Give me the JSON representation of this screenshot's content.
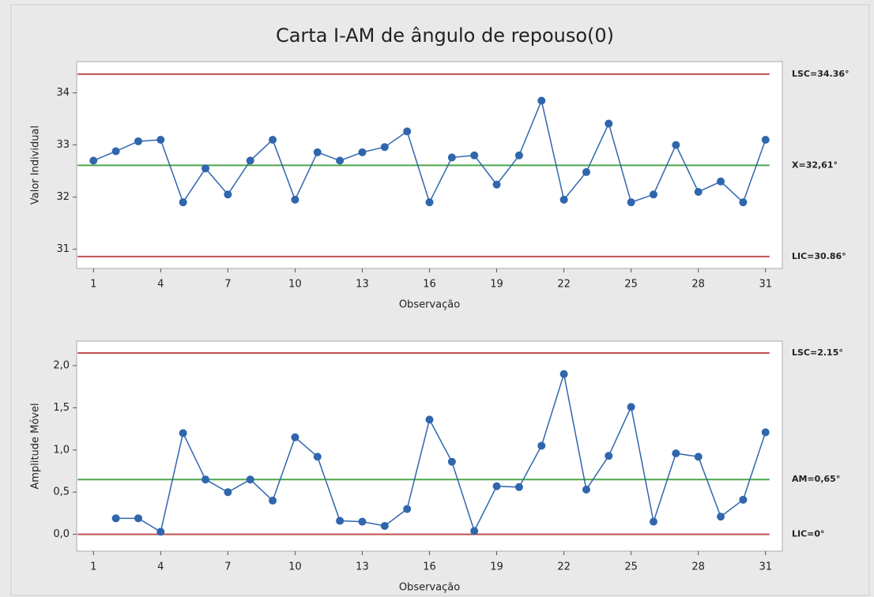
{
  "chart_data": [
    {
      "type": "line",
      "title": "Carta I-AM de ângulo de repouso(0)",
      "ylabel": "Valor Individual",
      "xlabel": "Observação",
      "x": [
        1,
        2,
        3,
        4,
        5,
        6,
        7,
        8,
        9,
        10,
        11,
        12,
        13,
        14,
        15,
        16,
        17,
        18,
        19,
        20,
        21,
        22,
        23,
        24,
        25,
        26,
        27,
        28,
        29,
        30,
        31
      ],
      "values": [
        32.7,
        32.88,
        33.07,
        33.1,
        31.9,
        32.55,
        32.05,
        32.7,
        33.1,
        31.95,
        32.86,
        32.7,
        32.86,
        32.96,
        33.26,
        31.9,
        32.76,
        32.8,
        32.24,
        32.8,
        33.85,
        31.95,
        32.48,
        33.41,
        31.9,
        32.05,
        33.0,
        32.1,
        32.3,
        31.9,
        33.1
      ],
      "color": "#2f66ad",
      "xlim": [
        0.25,
        31.75
      ],
      "xticks": [
        1,
        4,
        7,
        10,
        13,
        16,
        19,
        22,
        25,
        28,
        31
      ],
      "ylim": [
        30.63,
        34.6
      ],
      "yticks": [
        31,
        32,
        33,
        34
      ],
      "limits": [
        {
          "value": 34.36,
          "label": "LSC=34.36°",
          "color": "#c0504d"
        },
        {
          "value": 32.61,
          "label": "X=32,61°",
          "color": "#4ca64c"
        },
        {
          "value": 30.86,
          "label": "LIC=30.86°",
          "color": "#c0504d"
        }
      ]
    },
    {
      "type": "line",
      "ylabel": "Amplitude Móvel",
      "xlabel": "Observação",
      "x": [
        1,
        2,
        3,
        4,
        5,
        6,
        7,
        8,
        9,
        10,
        11,
        12,
        13,
        14,
        15,
        16,
        17,
        18,
        19,
        20,
        21,
        22,
        23,
        24,
        25,
        26,
        27,
        28,
        29,
        30,
        31
      ],
      "values": [
        null,
        0.19,
        0.19,
        0.03,
        1.2,
        0.65,
        0.5,
        0.65,
        0.4,
        1.15,
        0.92,
        0.16,
        0.15,
        0.1,
        0.3,
        1.36,
        0.86,
        0.04,
        0.57,
        0.56,
        1.05,
        1.9,
        0.53,
        0.93,
        1.51,
        0.15,
        0.96,
        0.92,
        0.21,
        0.41,
        1.21
      ],
      "color": "#2f66ad",
      "xlim": [
        0.25,
        31.75
      ],
      "xticks": [
        1,
        4,
        7,
        10,
        13,
        16,
        19,
        22,
        25,
        28,
        31
      ],
      "ylim": [
        -0.2,
        2.29
      ],
      "yticks": [
        {
          "value": 0,
          "label": "0,0"
        },
        {
          "value": 0.5,
          "label": "0,5"
        },
        {
          "value": 1,
          "label": "1,0"
        },
        {
          "value": 1.5,
          "label": "1,5"
        },
        {
          "value": 2,
          "label": "2,0"
        }
      ],
      "limits": [
        {
          "value": 2.15,
          "label": "LSC=2.15°",
          "color": "#c0504d"
        },
        {
          "value": 0.65,
          "label": "AM=0,65°",
          "color": "#4ca64c"
        },
        {
          "value": 0,
          "label": "LIC=0°",
          "color": "#c0504d"
        }
      ]
    }
  ]
}
